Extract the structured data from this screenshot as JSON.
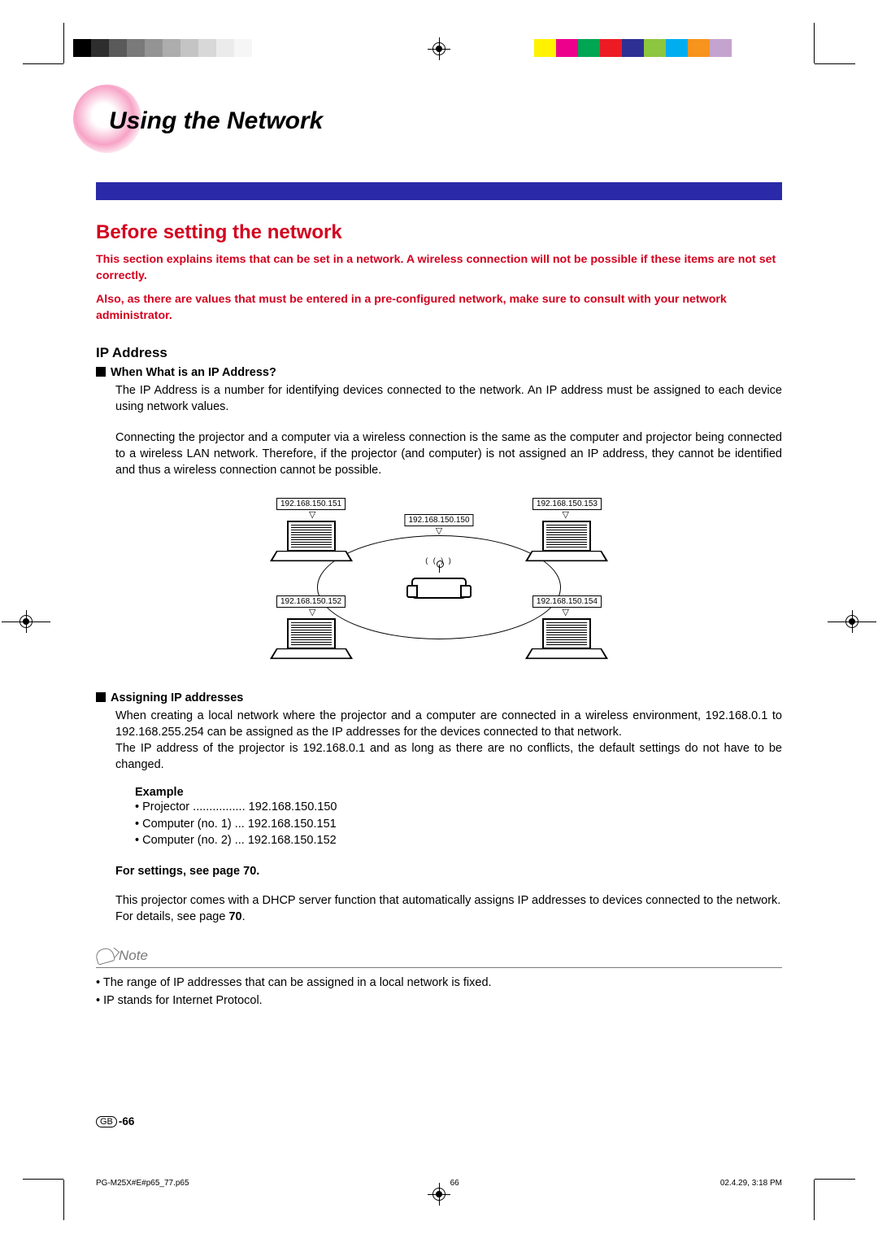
{
  "registration": {
    "gray_swatches": [
      "#000000",
      "#2e2e2e",
      "#5a5a5a",
      "#7a7a7a",
      "#949494",
      "#adadad",
      "#c4c4c4",
      "#d8d8d8",
      "#ebebeb",
      "#f6f6f6"
    ],
    "color_swatches": [
      "#ffffff",
      "#fff200",
      "#ec008c",
      "#00a651",
      "#ed1c24",
      "#2e3192",
      "#8dc63f",
      "#00aeef",
      "#f7941d",
      "#c4a4cf"
    ]
  },
  "title": "Using the Network",
  "accent_bar_color": "#2a2aa8",
  "section_heading": "Before setting the network",
  "intro_p1": "This section explains items that can be set in a network. A wireless connection will not be possible if these items are not set correctly.",
  "intro_p2": "Also, as there are values that must be entered in a pre-configured network, make sure to consult with your network administrator.",
  "ip_address": {
    "heading": "IP Address",
    "q_heading": "When What is an IP Address?",
    "p1": "The IP Address is a number for identifying devices connected to the network. An IP address must be assigned to each device using network values.",
    "p2": "Connecting the projector and a computer via a wireless connection is the same as the computer and projector being connected to a wireless LAN network. Therefore, if the projector (and computer) is not assigned an IP address, they cannot be identified and thus a wireless connection cannot be possible.",
    "diagram_ips": {
      "projector": "192.168.150.150",
      "tl": "192.168.150.151",
      "tr": "192.168.150.153",
      "bl": "192.168.150.152",
      "br": "192.168.150.154"
    },
    "assign_heading": "Assigning IP addresses",
    "assign_p1": "When creating a local network where the projector and a computer are connected in a wireless environment, 192.168.0.1 to 192.168.255.254 can be assigned as the IP addresses for the devices connected to that network.",
    "assign_p2": "The IP address of the projector is 192.168.0.1 and as long as there are no conflicts, the default settings do not have to be changed.",
    "example_heading": "Example",
    "example_items": [
      "Projector ................ 192.168.150.150",
      "Computer (no. 1) ... 192.168.150.151",
      "Computer (no. 2) ... 192.168.150.152"
    ],
    "for_settings": "For settings, see page 70.",
    "dhcp_p": "This projector comes with a DHCP server function that automatically assigns IP addresses to devices connected to the network.",
    "details_p": "For details, see page 70."
  },
  "note": {
    "label": "Note",
    "items": [
      "The range of IP addresses that can be assigned in a local network is fixed.",
      "IP stands for Internet Protocol."
    ]
  },
  "page_number": {
    "region": "GB",
    "num": "-66"
  },
  "footer": {
    "file": "PG-M25X#E#p65_77.p65",
    "page": "66",
    "timestamp": "02.4.29, 3:18 PM"
  }
}
